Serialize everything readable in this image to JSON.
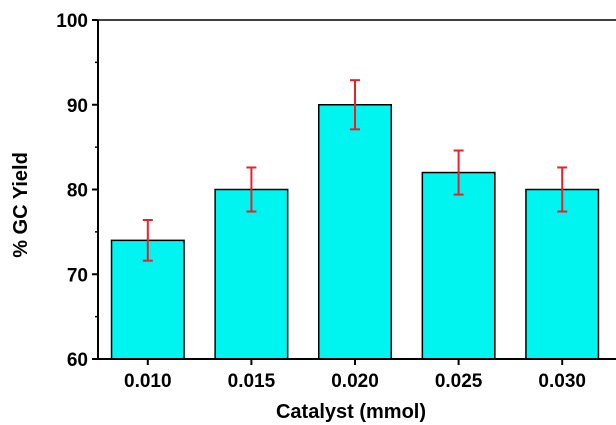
{
  "chart_data": {
    "type": "bar",
    "title": "",
    "xlabel": "Catalyst (mmol)",
    "ylabel": "% GC Yield",
    "categories": [
      "0.010",
      "0.015",
      "0.020",
      "0.025",
      "0.030"
    ],
    "values": [
      74,
      80,
      90,
      82,
      80
    ],
    "error": [
      2.4,
      2.6,
      2.9,
      2.6,
      2.6
    ],
    "ylim": [
      60,
      100
    ],
    "yticks": [
      60,
      70,
      80,
      90,
      100
    ],
    "y_minor_step": 5,
    "grid": false,
    "legend": "none",
    "colors": {
      "bar_fill": "#00F5F0",
      "bar_stroke": "#000000",
      "error_bar": "#E8212B",
      "axis": "#000000"
    }
  }
}
